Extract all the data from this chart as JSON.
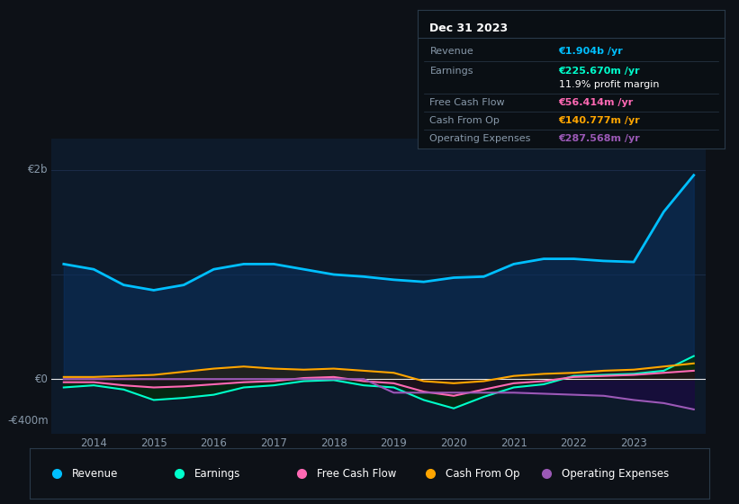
{
  "bg_color": "#0d1117",
  "plot_bg_color": "#0d1a2a",
  "grid_color": "#1e3050",
  "text_color": "#8899aa",
  "years": [
    2013.5,
    2014.0,
    2014.5,
    2015.0,
    2015.5,
    2016.0,
    2016.5,
    2017.0,
    2017.5,
    2018.0,
    2018.5,
    2019.0,
    2019.5,
    2020.0,
    2020.5,
    2021.0,
    2021.5,
    2022.0,
    2022.5,
    2023.0,
    2023.5,
    2024.0
  ],
  "revenue": [
    1100,
    1050,
    900,
    850,
    900,
    1050,
    1100,
    1100,
    1050,
    1000,
    980,
    950,
    930,
    970,
    980,
    1100,
    1150,
    1150,
    1130,
    1120,
    1600,
    1950
  ],
  "earnings": [
    -80,
    -60,
    -100,
    -200,
    -180,
    -150,
    -80,
    -60,
    -20,
    -10,
    -60,
    -80,
    -200,
    -280,
    -170,
    -80,
    -50,
    30,
    40,
    50,
    80,
    220
  ],
  "free_cash_flow": [
    -30,
    -30,
    -60,
    -80,
    -70,
    -50,
    -30,
    -20,
    10,
    20,
    -20,
    -40,
    -120,
    -160,
    -100,
    -40,
    -20,
    20,
    30,
    40,
    60,
    80
  ],
  "cash_from_op": [
    20,
    20,
    30,
    40,
    70,
    100,
    120,
    100,
    90,
    100,
    80,
    60,
    -20,
    -40,
    -20,
    30,
    50,
    60,
    80,
    90,
    120,
    150
  ],
  "operating_expenses": [
    0,
    0,
    0,
    0,
    0,
    0,
    0,
    0,
    0,
    0,
    0,
    -130,
    -130,
    -130,
    -130,
    -130,
    -140,
    -150,
    -160,
    -200,
    -230,
    -290
  ],
  "revenue_color": "#00bfff",
  "earnings_color": "#00ffcc",
  "fcf_color": "#ff69b4",
  "cashop_color": "#ffa500",
  "opex_color": "#9b59b6",
  "revenue_fill": "#0a3060",
  "earnings_fill": "#003300",
  "fcf_fill": "#330020",
  "cashop_fill": "#332000",
  "opex_fill": "#1a0a40",
  "info_box_title": "Dec 31 2023",
  "info_rows": [
    {
      "label": "Revenue",
      "value": "€1.904b /yr",
      "value_color": "#00bfff"
    },
    {
      "label": "Earnings",
      "value": "€225.670m /yr",
      "value_color": "#00ffcc"
    },
    {
      "label": "",
      "value": "11.9% profit margin",
      "value_color": "#ffffff"
    },
    {
      "label": "Free Cash Flow",
      "value": "€56.414m /yr",
      "value_color": "#ff69b4"
    },
    {
      "label": "Cash From Op",
      "value": "€140.777m /yr",
      "value_color": "#ffa500"
    },
    {
      "label": "Operating Expenses",
      "value": "€287.568m /yr",
      "value_color": "#9b59b6"
    }
  ],
  "legend": [
    {
      "label": "Revenue",
      "color": "#00bfff"
    },
    {
      "label": "Earnings",
      "color": "#00ffcc"
    },
    {
      "label": "Free Cash Flow",
      "color": "#ff69b4"
    },
    {
      "label": "Cash From Op",
      "color": "#ffa500"
    },
    {
      "label": "Operating Expenses",
      "color": "#9b59b6"
    }
  ],
  "ytick_values": [
    2000,
    0,
    -400
  ],
  "ytick_labels": [
    "€2b",
    "€0",
    "-€400m"
  ],
  "xticks": [
    2014,
    2015,
    2016,
    2017,
    2018,
    2019,
    2020,
    2021,
    2022,
    2023
  ],
  "xlim": [
    2013.3,
    2024.2
  ],
  "ylim": [
    -520,
    2300
  ]
}
